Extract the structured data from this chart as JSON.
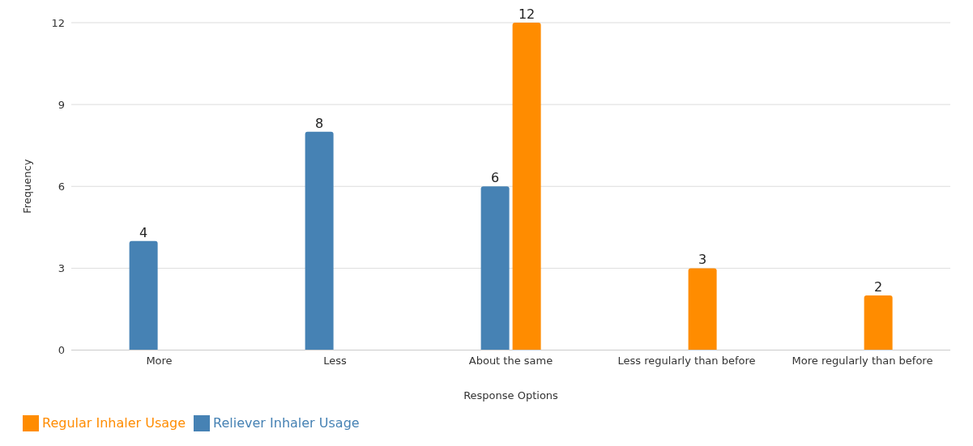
{
  "chart_data": {
    "type": "bar",
    "xlabel": "Response Options",
    "ylabel": "Frequency",
    "categories": [
      "More",
      "Less",
      "About the same",
      "Less regularly than before",
      "More regularly than before"
    ],
    "series": [
      {
        "name": "Reliever Inhaler Usage",
        "color": "#4682b4",
        "values": [
          4,
          8,
          6,
          null,
          null
        ]
      },
      {
        "name": "Regular Inhaler Usage",
        "color": "#ff8c00",
        "values": [
          null,
          null,
          12,
          3,
          2
        ]
      }
    ],
    "ylim": [
      0,
      12
    ],
    "yticks": [
      0,
      3,
      6,
      9,
      12
    ],
    "grid": "y",
    "legend": "bottom left",
    "data_labels": true
  }
}
